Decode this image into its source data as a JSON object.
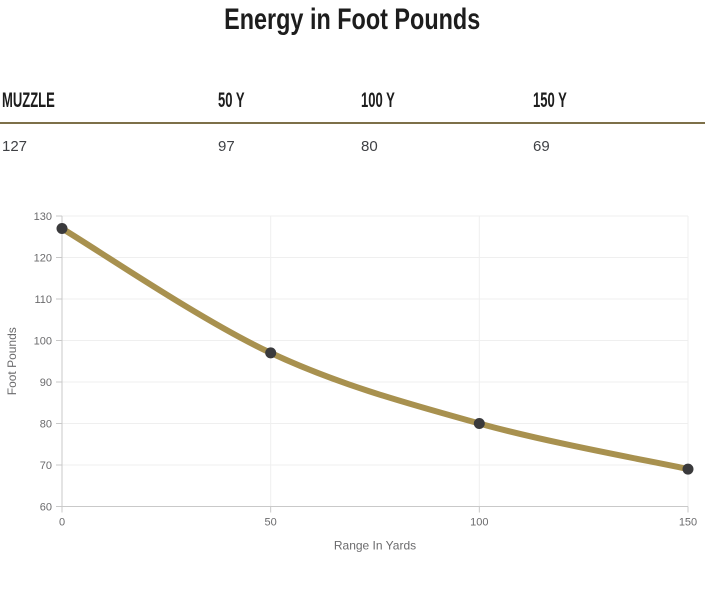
{
  "title": "Energy in Foot Pounds",
  "table": {
    "headers": [
      "MUZZLE",
      "50 Y",
      "100 Y",
      "150 Y"
    ],
    "values": [
      "127",
      "97",
      "80",
      "69"
    ]
  },
  "chart_data": {
    "type": "line",
    "x": [
      0,
      50,
      100,
      150
    ],
    "series": [
      {
        "name": "Energy in Foot Pounds",
        "values": [
          127,
          97,
          80,
          69
        ]
      }
    ],
    "xlabel": "Range In Yards",
    "ylabel": "Foot Pounds",
    "xlim": [
      0,
      150
    ],
    "ylim": [
      60,
      130
    ],
    "xticks": [
      0,
      50,
      100,
      150
    ],
    "yticks": [
      60,
      70,
      80,
      90,
      100,
      110,
      120,
      130
    ],
    "grid": true,
    "legend": false,
    "colors": {
      "line": "#a8914f",
      "point": "#3a3a3c",
      "grid": "#efefef",
      "axis": "#c9c9c9",
      "tick_text": "#6b6b6d",
      "divider": "#7d7049",
      "title_text": "#1d1d1d",
      "value_text": "#3f4145"
    }
  }
}
